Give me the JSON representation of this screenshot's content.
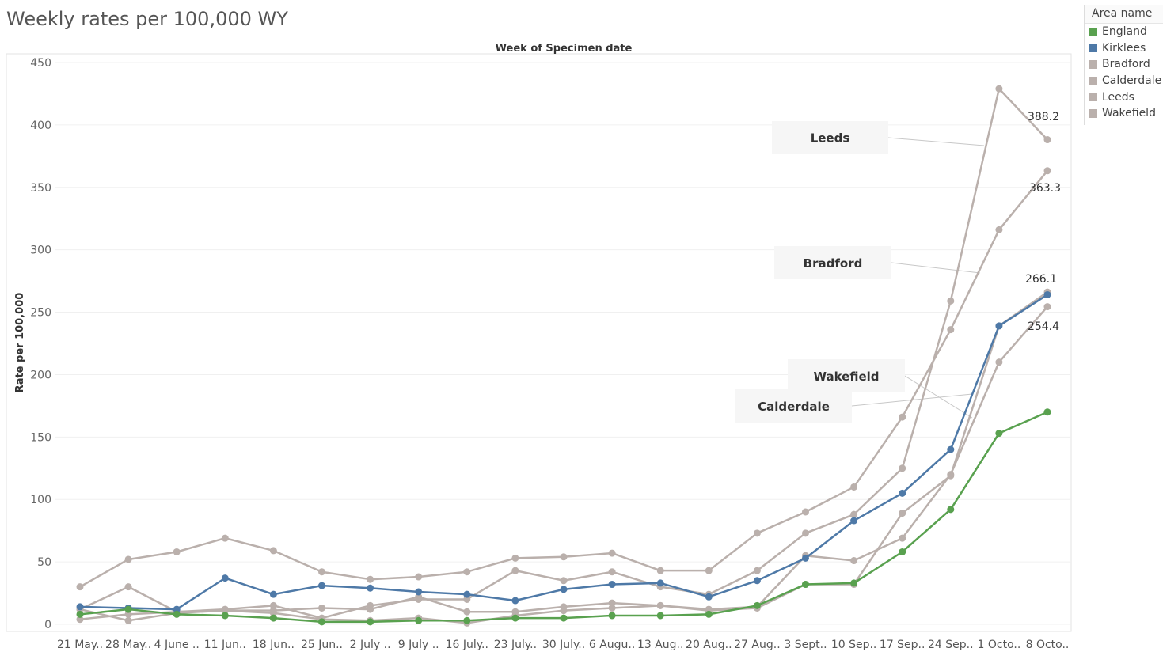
{
  "title": "Weekly rates per 100,000 WY",
  "legend": {
    "title": "Area name",
    "items": [
      {
        "label": "England",
        "color": "#59a14f"
      },
      {
        "label": "Kirklees",
        "color": "#4e79a7"
      },
      {
        "label": "Bradford",
        "color": "#bab0ac"
      },
      {
        "label": "Calderdale",
        "color": "#bab0ac"
      },
      {
        "label": "Leeds",
        "color": "#bab0ac"
      },
      {
        "label": "Wakefield",
        "color": "#bab0ac"
      }
    ]
  },
  "chart_data": {
    "type": "line",
    "title": "",
    "top_axis_label": "Week of Specimen date",
    "xlabel": "",
    "ylabel": "Rate per 100,000",
    "ylim": [
      0,
      450
    ],
    "yticks": [
      0,
      50,
      100,
      150,
      200,
      250,
      300,
      350,
      400,
      450
    ],
    "grid": true,
    "legend_position": "right",
    "categories": [
      "21 May..",
      "28 May..",
      "4 June ..",
      "11 Jun..",
      "18 Jun..",
      "25 Jun..",
      "2 July ..",
      "9 July ..",
      "16 July..",
      "23 July..",
      "30 July..",
      "6 Augu..",
      "13 Aug..",
      "20 Aug..",
      "27 Aug..",
      "3 Sept..",
      "10 Sep..",
      "17 Sep..",
      "24 Sep..",
      "1 Octo..",
      "8 Octo.."
    ],
    "series": [
      {
        "name": "Bradford",
        "color": "#bab0ac",
        "values": [
          30,
          52,
          58,
          69,
          59,
          42,
          36,
          38,
          42,
          53,
          54,
          57,
          43,
          43,
          73,
          90,
          110,
          166,
          236,
          316,
          363.3
        ]
      },
      {
        "name": "Calderdale",
        "color": "#bab0ac",
        "values": [
          12,
          3,
          9,
          11,
          11,
          13,
          12,
          22,
          10,
          10,
          14,
          17,
          15,
          12,
          14,
          55,
          51,
          69,
          120,
          210,
          254.4
        ]
      },
      {
        "name": "Leeds",
        "color": "#bab0ac",
        "values": [
          12,
          30,
          10,
          12,
          15,
          5,
          15,
          20,
          20,
          43,
          35,
          42,
          30,
          24,
          43,
          73,
          88,
          125,
          259,
          429,
          388.2
        ]
      },
      {
        "name": "Wakefield",
        "color": "#bab0ac",
        "values": [
          4,
          8,
          10,
          11,
          9,
          4,
          3,
          5,
          1,
          7,
          11,
          13,
          15,
          11,
          13,
          32,
          32,
          89,
          119,
          239,
          266.1
        ]
      },
      {
        "name": "Kirklees",
        "color": "#4e79a7",
        "values": [
          14,
          13,
          12,
          37,
          24,
          31,
          29,
          26,
          24,
          19,
          28,
          32,
          33,
          22,
          35,
          53,
          83,
          105,
          140,
          239,
          264
        ]
      },
      {
        "name": "England",
        "color": "#59a14f",
        "values": [
          8,
          12,
          8,
          7,
          5,
          2,
          2,
          3,
          3,
          5,
          5,
          7,
          7,
          8,
          15,
          32,
          33,
          58,
          92,
          153,
          170
        ]
      }
    ],
    "end_labels": [
      {
        "series": "Leeds",
        "text": "388.2"
      },
      {
        "series": "Bradford",
        "text": "363.3"
      },
      {
        "series": "Wakefield",
        "text": "266.1"
      },
      {
        "series": "Calderdale",
        "text": "254.4"
      }
    ],
    "annotations": [
      {
        "text": "Leeds",
        "series": "Leeds",
        "point_index": 19,
        "near_value": 380
      },
      {
        "text": "Bradford",
        "series": "Bradford",
        "point_index": 18,
        "near_value": 280
      },
      {
        "text": "Wakefield",
        "series": "Wakefield",
        "point_index": 18,
        "near_value": 160
      },
      {
        "text": "Calderdale",
        "series": "Calderdale",
        "point_index": 18,
        "near_value": 180
      }
    ]
  }
}
